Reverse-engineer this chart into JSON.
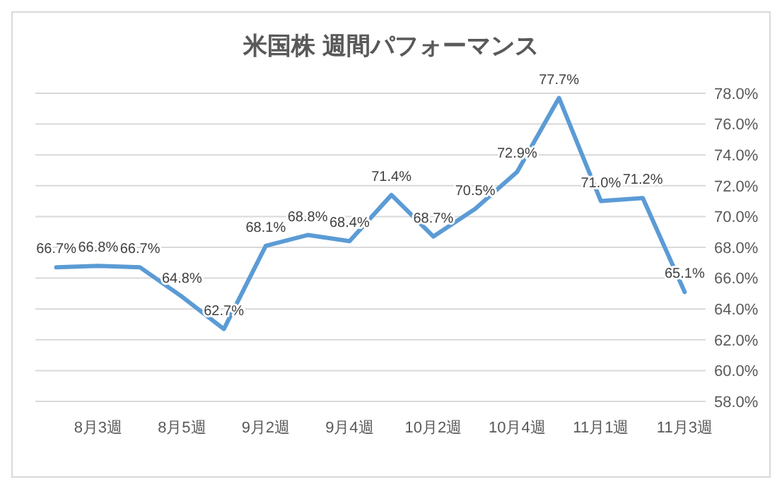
{
  "chart_data": {
    "type": "line",
    "title": "米国株 週間パフォーマンス",
    "categories": [
      null,
      "8月3週",
      null,
      "8月5週",
      null,
      "9月2週",
      null,
      "9月4週",
      null,
      "10月2週",
      null,
      "10月4週",
      null,
      "11月1週",
      null,
      "11月3週"
    ],
    "series": [
      {
        "color": "#5b9bd5",
        "values": [
          66.7,
          66.8,
          66.7,
          64.8,
          62.7,
          68.1,
          68.8,
          68.4,
          71.4,
          68.7,
          70.5,
          72.9,
          77.7,
          71.0,
          71.2,
          65.1
        ],
        "value_labels": [
          "66.7%",
          "66.8%",
          "66.7%",
          "64.8%",
          "62.7%",
          "68.1%",
          "68.8%",
          "68.4%",
          "71.4%",
          "68.7%",
          "70.5%",
          "72.9%",
          "77.7%",
          "71.0%",
          "71.2%",
          "65.1%"
        ]
      }
    ],
    "ylim": [
      58,
      78
    ],
    "yticks": [
      {
        "value": 58,
        "label": "58.0%"
      },
      {
        "value": 60,
        "label": "60.0%"
      },
      {
        "value": 62,
        "label": "62.0%"
      },
      {
        "value": 64,
        "label": "64.0%"
      },
      {
        "value": 66,
        "label": "66.0%"
      },
      {
        "value": 68,
        "label": "68.0%"
      },
      {
        "value": 70,
        "label": "70.0%"
      },
      {
        "value": 72,
        "label": "72.0%"
      },
      {
        "value": 74,
        "label": "74.0%"
      },
      {
        "value": 76,
        "label": "76.0%"
      },
      {
        "value": 78,
        "label": "78.0%"
      }
    ],
    "grid": "y",
    "marker": "none",
    "line_style": "solid"
  }
}
